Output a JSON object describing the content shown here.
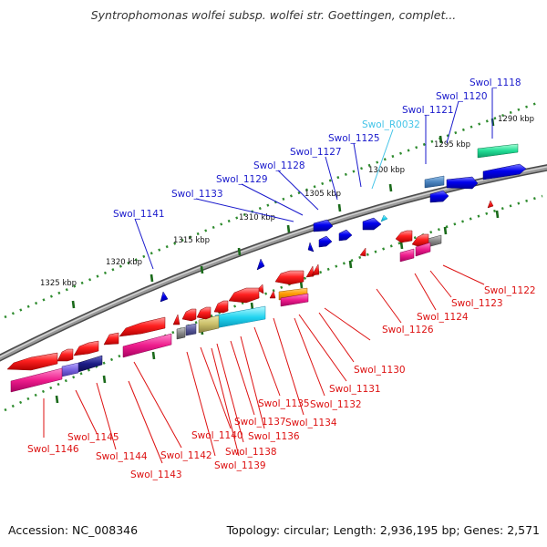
{
  "title": "Syntrophomonas wolfei subsp. wolfei str. Goettingen, complet...",
  "footer": {
    "accession": "Accession: NC_008346",
    "summary": "Topology: circular; Length: 2,936,195 bp; Genes: 2,571"
  },
  "scale_labels": [
    "1290 kbp",
    "1295 kbp",
    "1300 kbp",
    "1305 kbp",
    "1310 kbp",
    "1315 kbp",
    "1320 kbp",
    "1325 kbp"
  ],
  "colors": {
    "forward_label": "#1a1acc",
    "forward_rna_label": "#44c4e8",
    "reverse_label": "#dd1111",
    "backbone": "#808080",
    "tick_green": "#2e8b2e",
    "tick_dark_green": "#1a6a1a"
  },
  "genes_forward": [
    {
      "name": "Swol_1118"
    },
    {
      "name": "Swol_1120"
    },
    {
      "name": "Swol_1121"
    },
    {
      "name": "Swol_R0032"
    },
    {
      "name": "Swol_1125"
    },
    {
      "name": "Swol_1127"
    },
    {
      "name": "Swol_1128"
    },
    {
      "name": "Swol_1129"
    },
    {
      "name": "Swol_1133"
    },
    {
      "name": "Swol_1141"
    }
  ],
  "genes_reverse": [
    {
      "name": "Swol_1122"
    },
    {
      "name": "Swol_1123"
    },
    {
      "name": "Swol_1124"
    },
    {
      "name": "Swol_1126"
    },
    {
      "name": "Swol_1130"
    },
    {
      "name": "Swol_1131"
    },
    {
      "name": "Swol_1132"
    },
    {
      "name": "Swol_1134"
    },
    {
      "name": "Swol_1135"
    },
    {
      "name": "Swol_1136"
    },
    {
      "name": "Swol_1137"
    },
    {
      "name": "Swol_1138"
    },
    {
      "name": "Swol_1139"
    },
    {
      "name": "Swol_1140"
    },
    {
      "name": "Swol_1142"
    },
    {
      "name": "Swol_1143"
    },
    {
      "name": "Swol_1144"
    },
    {
      "name": "Swol_1145"
    },
    {
      "name": "Swol_1146"
    }
  ]
}
